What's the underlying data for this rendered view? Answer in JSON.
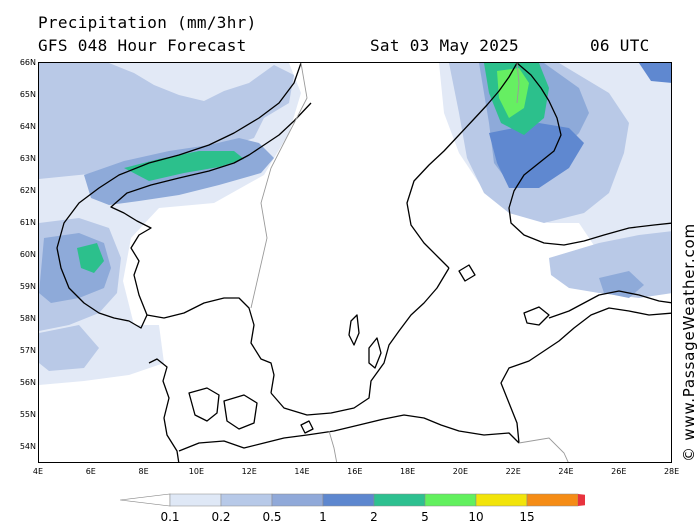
{
  "header": {
    "title": "Precipitation (mm/3hr)",
    "subtitle": "GFS 048 Hour Forecast",
    "date": "Sat 03 May 2025",
    "time": "06 UTC"
  },
  "axes": {
    "lat_labels": [
      "66N",
      "65N",
      "64N",
      "63N",
      "62N",
      "61N",
      "60N",
      "59N",
      "58N",
      "57N",
      "56N",
      "55N",
      "54N"
    ],
    "lon_labels": [
      "4E",
      "6E",
      "8E",
      "10E",
      "12E",
      "14E",
      "16E",
      "18E",
      "20E",
      "22E",
      "24E",
      "26E",
      "28E"
    ]
  },
  "credit": "© www.PassageWeather.com",
  "legend": {
    "thresholds": [
      "0.1",
      "0.2",
      "0.5",
      "1",
      "2",
      "5",
      "10",
      "15"
    ],
    "colors": [
      "#dfe8f6",
      "#b7c9e8",
      "#90a9d9",
      "#5d87cf",
      "#2ec090",
      "#62f05e",
      "#f2e40a",
      "#f58c16",
      "#e8333e"
    ],
    "low_arrow_color": "#ffffff"
  },
  "precip_colors": {
    "very_light": "#e2e9f6",
    "light": "#b9c9e7",
    "moderate_light": "#8eaad9",
    "moderate": "#5f88d0",
    "heavy": "#2cc08c",
    "very_heavy": "#66ef62"
  }
}
